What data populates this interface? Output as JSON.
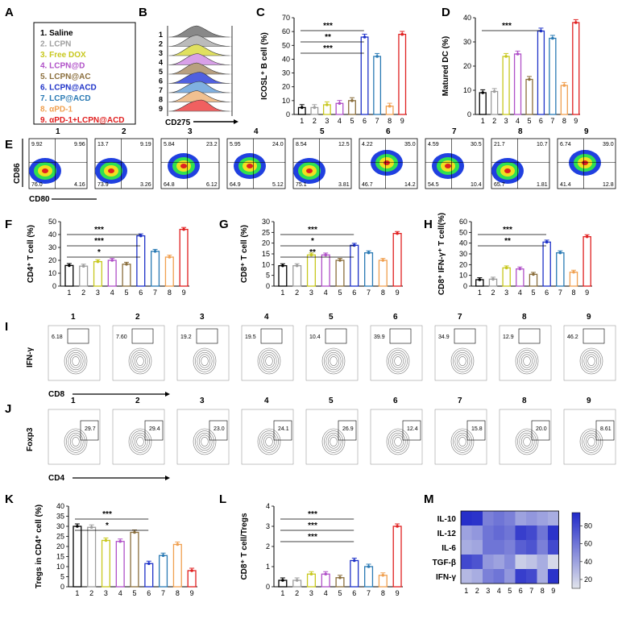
{
  "panels": {
    "A": "A",
    "B": "B",
    "C": "C",
    "D": "D",
    "E": "E",
    "F": "F",
    "G": "G",
    "H": "H",
    "I": "I",
    "J": "J",
    "K": "K",
    "L": "L",
    "M": "M"
  },
  "groups": [
    {
      "label": "1. Saline",
      "color": "#000000"
    },
    {
      "label": "2. LCPN",
      "color": "#9e9e9e"
    },
    {
      "label": "3. Free DOX",
      "color": "#c8c81e"
    },
    {
      "label": "4. LCPN@D",
      "color": "#b050c8"
    },
    {
      "label": "5. LCPN@AC",
      "color": "#8a6e3c"
    },
    {
      "label": "6. LCPN@ACD",
      "color": "#1e32c8"
    },
    {
      "label": "7. LCP@ACD",
      "color": "#2a7ab4"
    },
    {
      "label": "8. αPD-1",
      "color": "#f0a050"
    },
    {
      "label": "9. αPD-1+LCPN@ACD",
      "color": "#e02020"
    }
  ],
  "group_numbers": [
    "1",
    "2",
    "3",
    "4",
    "5",
    "6",
    "7",
    "8",
    "9"
  ],
  "panelB": {
    "xlabel": "CD275"
  },
  "panelE": {
    "xlabel": "CD80",
    "ylabel": "CD86",
    "quadrants": [
      [
        "9.92",
        "9.96",
        "76.0",
        "4.16"
      ],
      [
        "13.7",
        "9.19",
        "73.9",
        "3.26"
      ],
      [
        "5.84",
        "23.2",
        "64.8",
        "6.12"
      ],
      [
        "5.95",
        "24.0",
        "64.9",
        "5.12"
      ],
      [
        "8.54",
        "12.5",
        "75.1",
        "3.81"
      ],
      [
        "4.22",
        "35.0",
        "46.7",
        "14.2"
      ],
      [
        "4.59",
        "30.5",
        "54.5",
        "10.4"
      ],
      [
        "21.7",
        "10.7",
        "65.7",
        "1.81"
      ],
      [
        "6.74",
        "39.0",
        "41.4",
        "12.8"
      ]
    ]
  },
  "panelI": {
    "xlabel": "CD8",
    "ylabel": "IFN-γ",
    "gates": [
      "6.18",
      "7.60",
      "19.2",
      "19.5",
      "10.4",
      "39.9",
      "34.9",
      "12.9",
      "46.2"
    ]
  },
  "panelJ": {
    "xlabel": "CD4",
    "ylabel": "Foxp3",
    "gates": [
      "29.7",
      "29.4",
      "23.0",
      "24.1",
      "26.9",
      "12.4",
      "15.8",
      "20.0",
      "8.61"
    ]
  },
  "chart_data": [
    {
      "panel": "C",
      "type": "bar",
      "ylabel": "ICOSL⁺ B cell (%)",
      "ylim": [
        0,
        70
      ],
      "ticks": [
        0,
        10,
        20,
        30,
        40,
        50,
        60,
        70
      ],
      "categories": [
        "1",
        "2",
        "3",
        "4",
        "5",
        "6",
        "7",
        "8",
        "9"
      ],
      "values": [
        5,
        5,
        7,
        8,
        10,
        56,
        42,
        6,
        58
      ],
      "significance": [
        "***",
        "**",
        "***"
      ]
    },
    {
      "panel": "D",
      "type": "bar",
      "ylabel": "Matured DC (%)",
      "ylim": [
        0,
        40
      ],
      "ticks": [
        0,
        10,
        20,
        30,
        40
      ],
      "categories": [
        "1",
        "2",
        "3",
        "4",
        "5",
        "6",
        "7",
        "8",
        "9"
      ],
      "values": [
        9,
        9.5,
        24,
        25,
        14.5,
        34.5,
        31.5,
        12,
        38
      ],
      "significance": [
        "***"
      ]
    },
    {
      "panel": "F",
      "type": "bar",
      "ylabel": "CD4⁺ T cell (%)",
      "ylim": [
        0,
        50
      ],
      "ticks": [
        0,
        10,
        20,
        30,
        40,
        50
      ],
      "categories": [
        "1",
        "2",
        "3",
        "4",
        "5",
        "6",
        "7",
        "8",
        "9"
      ],
      "values": [
        16,
        15.5,
        19,
        20,
        17,
        39,
        27,
        22.5,
        44
      ],
      "significance": [
        "***",
        "***",
        "*"
      ]
    },
    {
      "panel": "G",
      "type": "bar",
      "ylabel": "CD8⁺ T cell (%)",
      "ylim": [
        0,
        30
      ],
      "ticks": [
        0,
        5,
        10,
        15,
        20,
        25,
        30
      ],
      "categories": [
        "1",
        "2",
        "3",
        "4",
        "5",
        "6",
        "7",
        "8",
        "9"
      ],
      "values": [
        9.5,
        9.5,
        14.5,
        14.5,
        12,
        19,
        15.5,
        12,
        24.5
      ],
      "significance": [
        "***",
        "*",
        "**"
      ]
    },
    {
      "panel": "H",
      "type": "bar",
      "ylabel": "CD8⁺ IFN-γ⁺ T cell(%)",
      "ylim": [
        0,
        60
      ],
      "ticks": [
        0,
        10,
        20,
        30,
        40,
        50,
        60
      ],
      "categories": [
        "1",
        "2",
        "3",
        "4",
        "5",
        "6",
        "7",
        "8",
        "9"
      ],
      "values": [
        6,
        6.5,
        17,
        16,
        11,
        41,
        31,
        13,
        46
      ],
      "significance": [
        "***",
        "**"
      ]
    },
    {
      "panel": "K",
      "type": "bar",
      "ylabel": "Tregs in CD4⁺ cell (%)",
      "ylim": [
        0,
        40
      ],
      "ticks": [
        0,
        5,
        10,
        15,
        20,
        25,
        30,
        35,
        40
      ],
      "categories": [
        "1",
        "2",
        "3",
        "4",
        "5",
        "6",
        "7",
        "8",
        "9"
      ],
      "values": [
        30,
        29.5,
        23,
        22.5,
        27,
        11.5,
        15.5,
        21,
        8
      ],
      "significance": [
        "***",
        "*"
      ]
    },
    {
      "panel": "L",
      "type": "bar",
      "ylabel": "CD8⁺ T cell/Tregs",
      "ylim": [
        0,
        4
      ],
      "ticks": [
        0,
        1,
        2,
        3,
        4
      ],
      "categories": [
        "1",
        "2",
        "3",
        "4",
        "5",
        "6",
        "7",
        "8",
        "9"
      ],
      "values": [
        0.32,
        0.32,
        0.63,
        0.63,
        0.45,
        1.3,
        1.0,
        0.57,
        3.0
      ],
      "significance": [
        "***",
        "***",
        "***"
      ]
    },
    {
      "panel": "M",
      "type": "heatmap",
      "rows": [
        "IL-10",
        "IL-12",
        "IL-6",
        "TGF-β",
        "IFN-γ"
      ],
      "columns": [
        "1",
        "2",
        "3",
        "4",
        "5",
        "6",
        "7",
        "8",
        "9"
      ],
      "colorbar_ticks": [
        "80",
        "60",
        "40",
        "20"
      ],
      "values": [
        [
          92,
          90,
          55,
          60,
          55,
          40,
          45,
          40,
          35
        ],
        [
          40,
          45,
          60,
          65,
          60,
          85,
          80,
          60,
          90
        ],
        [
          35,
          38,
          60,
          60,
          55,
          70,
          75,
          55,
          80
        ],
        [
          80,
          75,
          45,
          40,
          50,
          20,
          25,
          35,
          15
        ],
        [
          30,
          35,
          55,
          60,
          45,
          85,
          80,
          35,
          90
        ]
      ]
    }
  ]
}
